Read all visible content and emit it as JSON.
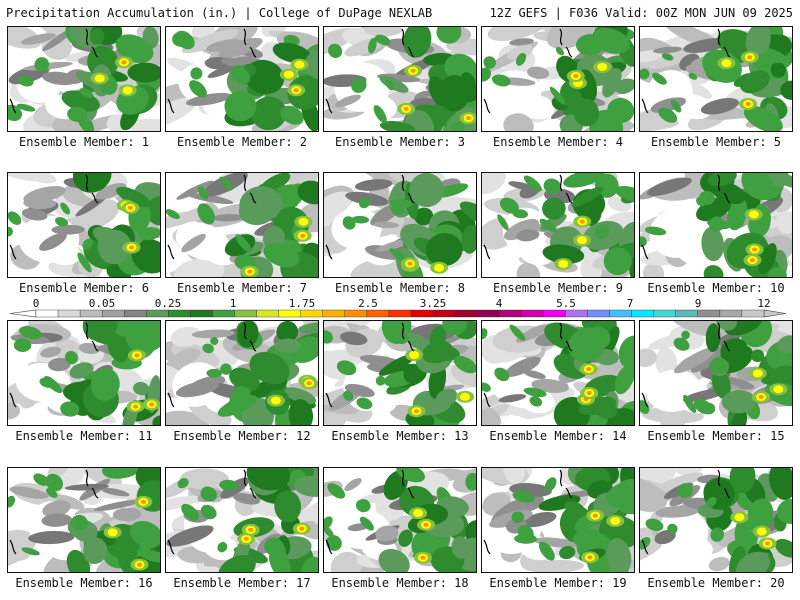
{
  "header": {
    "left_title": "Precipitation Accumulation (in.) | College of DuPage NEXLAB",
    "right_title": "12Z GEFS | F036 Valid: 00Z MON JUN 09 2025"
  },
  "panels": [
    {
      "label": "Ensemble Member: 1"
    },
    {
      "label": "Ensemble Member: 2"
    },
    {
      "label": "Ensemble Member: 3"
    },
    {
      "label": "Ensemble Member: 4"
    },
    {
      "label": "Ensemble Member: 5"
    },
    {
      "label": "Ensemble Member: 6"
    },
    {
      "label": "Ensemble Member: 7"
    },
    {
      "label": "Ensemble Member: 8"
    },
    {
      "label": "Ensemble Member: 9"
    },
    {
      "label": "Ensemble Member: 10"
    },
    {
      "label": "Ensemble Member: 11"
    },
    {
      "label": "Ensemble Member: 12"
    },
    {
      "label": "Ensemble Member: 13"
    },
    {
      "label": "Ensemble Member: 14"
    },
    {
      "label": "Ensemble Member: 15"
    },
    {
      "label": "Ensemble Member: 16"
    },
    {
      "label": "Ensemble Member: 17"
    },
    {
      "label": "Ensemble Member: 18"
    },
    {
      "label": "Ensemble Member: 19"
    },
    {
      "label": "Ensemble Member: 20"
    }
  ],
  "colorbar": {
    "labels": [
      "0",
      "0.05",
      "0.25",
      "1",
      "1.75",
      "2.5",
      "3.25",
      "4",
      "5.5",
      "7",
      "9",
      "12"
    ],
    "colors": [
      "#ffffff",
      "#d8d8d8",
      "#bcbcbc",
      "#a0a0a0",
      "#848484",
      "#5a9a5a",
      "#2e8b2e",
      "#1f7a1f",
      "#3fa040",
      "#88c040",
      "#d8e820",
      "#ffff00",
      "#ffd700",
      "#ffb000",
      "#ff8c00",
      "#ff6000",
      "#ff3000",
      "#e00000",
      "#c00018",
      "#a00030",
      "#900050",
      "#b0007a",
      "#d000b0",
      "#f000f0",
      "#b070f0",
      "#7090ff",
      "#40c0ff",
      "#00e8ff",
      "#40d8d0",
      "#60b8b8",
      "#909090",
      "#a8a8a8",
      "#c8c8c8"
    ]
  }
}
